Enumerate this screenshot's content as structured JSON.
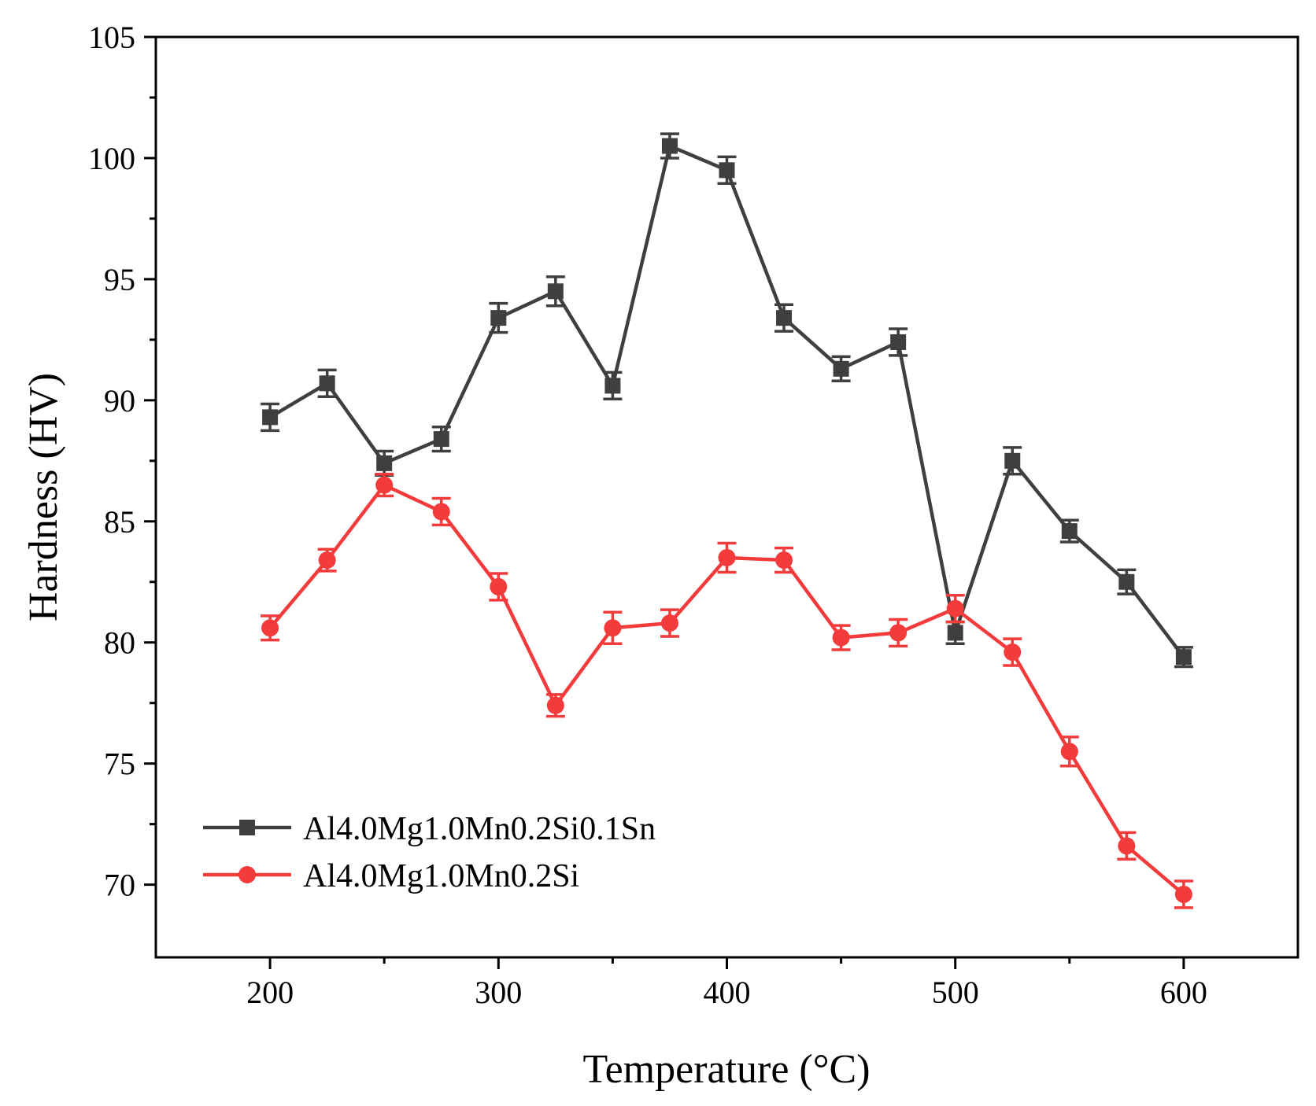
{
  "chart_data": {
    "type": "line",
    "title": "",
    "xlabel": "Temperature (°C)",
    "ylabel": "Hardness (HV)",
    "xlim": [
      150,
      650
    ],
    "ylim": [
      67,
      105
    ],
    "x_major_ticks": [
      200,
      300,
      400,
      500,
      600
    ],
    "x_tick_labels": [
      "200",
      "300",
      "400",
      "500",
      "600"
    ],
    "y_major_ticks": [
      70,
      75,
      80,
      85,
      90,
      95,
      100,
      105
    ],
    "y_tick_labels": [
      "70",
      "75",
      "80",
      "85",
      "90",
      "95",
      "100",
      "105"
    ],
    "x_minor_ticks": [
      250,
      350,
      450,
      550
    ],
    "y_minor_ticks": [
      72.5,
      77.5,
      82.5,
      87.5,
      92.5,
      97.5,
      102.5
    ],
    "grid": false,
    "legend_position": "bottom-left",
    "x": [
      200,
      225,
      250,
      275,
      300,
      325,
      350,
      375,
      400,
      425,
      450,
      475,
      500,
      525,
      550,
      575,
      600
    ],
    "series": [
      {
        "name": "Al4.0Mg1.0Mn0.2Si0.1Sn",
        "color": "#3f3f3f",
        "marker": "square",
        "values": [
          89.3,
          90.7,
          87.4,
          88.4,
          93.4,
          94.5,
          90.6,
          100.5,
          99.5,
          93.4,
          91.3,
          92.4,
          80.4,
          87.5,
          84.6,
          82.5,
          79.4
        ],
        "errors": [
          0.55,
          0.55,
          0.5,
          0.5,
          0.6,
          0.6,
          0.55,
          0.5,
          0.55,
          0.55,
          0.5,
          0.55,
          0.45,
          0.55,
          0.45,
          0.5,
          0.4
        ]
      },
      {
        "name": "Al4.0Mg1.0Mn0.2Si",
        "color": "#f33b3b",
        "marker": "circle",
        "values": [
          80.6,
          83.4,
          86.5,
          85.4,
          82.3,
          77.4,
          80.6,
          80.8,
          83.5,
          83.4,
          80.2,
          80.4,
          81.4,
          79.6,
          75.5,
          71.6,
          69.6
        ],
        "errors": [
          0.5,
          0.45,
          0.45,
          0.55,
          0.55,
          0.45,
          0.65,
          0.55,
          0.6,
          0.5,
          0.5,
          0.55,
          0.55,
          0.55,
          0.6,
          0.55,
          0.55
        ]
      }
    ]
  }
}
